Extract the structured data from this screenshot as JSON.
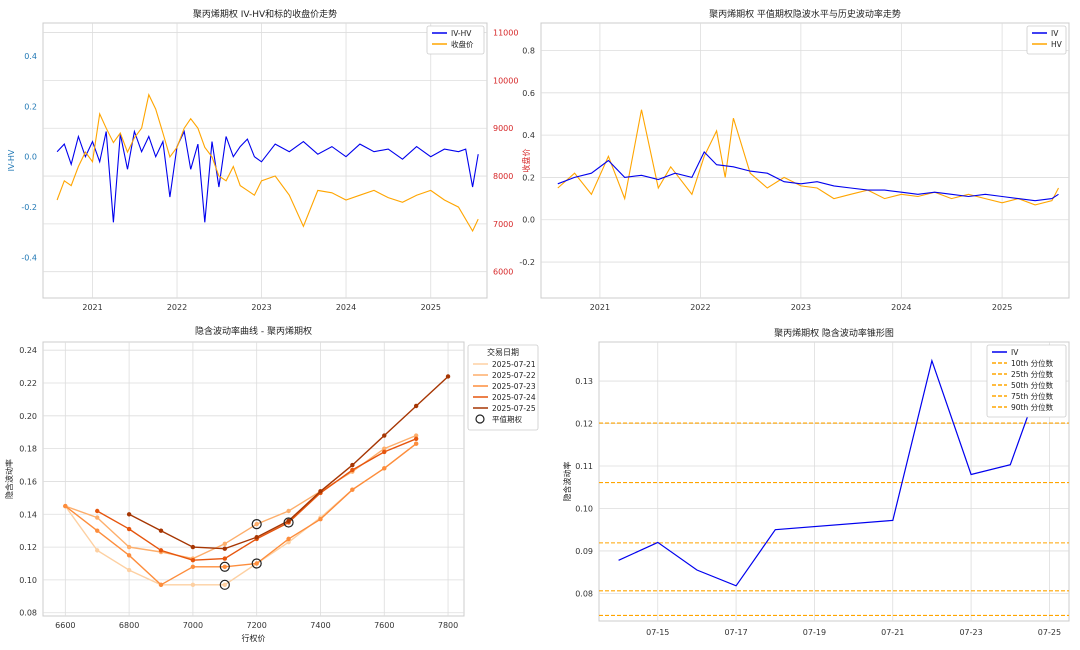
{
  "chart_data": [
    {
      "type": "line",
      "title": "聚丙烯期权 IV-HV和标的收盘价走势",
      "xlabel": "",
      "ylabel": "IV-HV",
      "y2label": "收盘价",
      "x_ticks": [
        "2021",
        "2022",
        "2023",
        "2024",
        "2025"
      ],
      "y_ticks": [
        "-0.4",
        "-0.2",
        "0.0",
        "0.2",
        "0.4"
      ],
      "y2_ticks": [
        "6000",
        "7000",
        "8000",
        "9000",
        "10000",
        "11000"
      ],
      "ylim": [
        -0.56,
        0.53
      ],
      "y2lim": [
        5450,
        11200
      ],
      "xlim": [
        "2020-06-01",
        "2025-09-01"
      ],
      "legend_position": "top-right",
      "grid": true,
      "series": [
        {
          "name": "IV-HV",
          "color": "#0000ee",
          "axis": "left",
          "x": [
            "2020-08-01",
            "2020-09-01",
            "2020-10-01",
            "2020-11-01",
            "2020-12-01",
            "2021-01-01",
            "2021-02-01",
            "2021-03-01",
            "2021-04-01",
            "2021-05-01",
            "2021-06-01",
            "2021-07-01",
            "2021-08-01",
            "2021-09-01",
            "2021-10-01",
            "2021-11-01",
            "2021-12-01",
            "2022-01-01",
            "2022-02-01",
            "2022-03-01",
            "2022-04-01",
            "2022-05-01",
            "2022-06-01",
            "2022-07-01",
            "2022-08-01",
            "2022-09-01",
            "2022-10-01",
            "2022-11-01",
            "2022-12-01",
            "2023-01-01",
            "2023-03-01",
            "2023-05-01",
            "2023-07-01",
            "2023-09-01",
            "2023-11-01",
            "2024-01-01",
            "2024-03-01",
            "2024-05-01",
            "2024-07-01",
            "2024-09-01",
            "2024-11-01",
            "2025-01-01",
            "2025-03-01",
            "2025-05-01",
            "2025-06-01",
            "2025-07-01",
            "2025-07-25"
          ],
          "y": [
            0.02,
            0.05,
            -0.03,
            0.08,
            0.0,
            0.06,
            -0.02,
            0.1,
            -0.26,
            0.09,
            -0.05,
            0.1,
            0.02,
            0.08,
            0.0,
            0.06,
            -0.16,
            0.04,
            0.1,
            -0.05,
            0.05,
            -0.26,
            0.06,
            -0.12,
            0.08,
            0.0,
            0.04,
            0.07,
            0.0,
            -0.02,
            0.05,
            0.02,
            0.06,
            0.01,
            0.04,
            0.0,
            0.05,
            0.02,
            0.03,
            -0.01,
            0.04,
            0.0,
            0.03,
            0.02,
            0.03,
            -0.12,
            0.01
          ]
        },
        {
          "name": "收盘价",
          "color": "#ffa500",
          "axis": "right",
          "x": [
            "2020-08-01",
            "2020-09-01",
            "2020-10-01",
            "2020-11-01",
            "2020-12-01",
            "2021-01-01",
            "2021-02-01",
            "2021-03-01",
            "2021-04-01",
            "2021-05-01",
            "2021-06-01",
            "2021-07-01",
            "2021-08-01",
            "2021-09-01",
            "2021-10-01",
            "2021-11-01",
            "2021-12-01",
            "2022-01-01",
            "2022-02-01",
            "2022-03-01",
            "2022-04-01",
            "2022-05-01",
            "2022-06-01",
            "2022-07-01",
            "2022-08-01",
            "2022-09-01",
            "2022-10-01",
            "2022-11-01",
            "2022-12-01",
            "2023-01-01",
            "2023-03-01",
            "2023-05-01",
            "2023-07-01",
            "2023-09-01",
            "2023-11-01",
            "2024-01-01",
            "2024-03-01",
            "2024-05-01",
            "2024-07-01",
            "2024-09-01",
            "2024-11-01",
            "2025-01-01",
            "2025-03-01",
            "2025-05-01",
            "2025-07-01",
            "2025-07-25"
          ],
          "y": [
            7500,
            7900,
            7800,
            8200,
            8500,
            8300,
            9300,
            9000,
            8700,
            8900,
            8500,
            8800,
            9000,
            9700,
            9400,
            8900,
            8400,
            8600,
            9000,
            9200,
            9000,
            8600,
            8400,
            8000,
            7900,
            8200,
            7800,
            7700,
            7600,
            7900,
            8000,
            7600,
            6950,
            7700,
            7650,
            7500,
            7600,
            7700,
            7550,
            7450,
            7600,
            7700,
            7500,
            7350,
            6850,
            7100
          ]
        }
      ]
    },
    {
      "type": "line",
      "title": "聚丙烯期权 平值期权隐波水平与历史波动率走势",
      "xlabel": "",
      "ylabel": "",
      "x_ticks": [
        "2021",
        "2022",
        "2023",
        "2024",
        "2025"
      ],
      "y_ticks": [
        "-0.2",
        "0.0",
        "0.2",
        "0.4",
        "0.6",
        "0.8"
      ],
      "ylim": [
        -0.37,
        0.93
      ],
      "xlim": [
        "2020-06-01",
        "2025-09-01"
      ],
      "legend_position": "top-right",
      "grid": true,
      "series": [
        {
          "name": "IV",
          "color": "#0000ee",
          "x": [
            "2020-08-01",
            "2020-10-01",
            "2020-12-01",
            "2021-02-01",
            "2021-04-01",
            "2021-06-01",
            "2021-08-01",
            "2021-10-01",
            "2021-12-01",
            "2022-01-15",
            "2022-03-01",
            "2022-05-01",
            "2022-07-01",
            "2022-09-01",
            "2022-11-01",
            "2023-01-01",
            "2023-03-01",
            "2023-05-01",
            "2023-07-01",
            "2023-09-01",
            "2023-11-01",
            "2024-01-01",
            "2024-03-01",
            "2024-05-01",
            "2024-07-01",
            "2024-09-01",
            "2024-11-01",
            "2025-01-01",
            "2025-03-01",
            "2025-05-01",
            "2025-07-01",
            "2025-07-25"
          ],
          "y": [
            0.17,
            0.2,
            0.22,
            0.28,
            0.2,
            0.21,
            0.19,
            0.22,
            0.2,
            0.32,
            0.26,
            0.25,
            0.23,
            0.22,
            0.18,
            0.17,
            0.18,
            0.16,
            0.15,
            0.14,
            0.14,
            0.13,
            0.12,
            0.13,
            0.12,
            0.11,
            0.12,
            0.11,
            0.1,
            0.09,
            0.1,
            0.12
          ]
        },
        {
          "name": "HV",
          "color": "#ffa500",
          "x": [
            "2020-08-01",
            "2020-10-01",
            "2020-12-01",
            "2021-02-01",
            "2021-04-01",
            "2021-06-01",
            "2021-08-01",
            "2021-09-15",
            "2021-10-15",
            "2021-12-01",
            "2022-01-15",
            "2022-03-01",
            "2022-04-01",
            "2022-05-01",
            "2022-07-01",
            "2022-09-01",
            "2022-11-01",
            "2023-01-01",
            "2023-03-01",
            "2023-05-01",
            "2023-07-01",
            "2023-09-01",
            "2023-11-01",
            "2024-01-01",
            "2024-03-01",
            "2024-05-01",
            "2024-07-01",
            "2024-09-01",
            "2024-11-01",
            "2025-01-01",
            "2025-03-01",
            "2025-05-01",
            "2025-07-01",
            "2025-07-25"
          ],
          "y": [
            0.15,
            0.22,
            0.12,
            0.3,
            0.1,
            0.52,
            0.15,
            0.25,
            0.2,
            0.12,
            0.3,
            0.42,
            0.2,
            0.48,
            0.22,
            0.15,
            0.2,
            0.16,
            0.15,
            0.1,
            0.12,
            0.14,
            0.1,
            0.12,
            0.11,
            0.13,
            0.1,
            0.12,
            0.1,
            0.08,
            0.1,
            0.07,
            0.09,
            0.15
          ]
        }
      ]
    },
    {
      "type": "line",
      "title": "隐含波动率曲线 - 聚丙烯期权",
      "xlabel": "行权价",
      "ylabel": "隐含波动率",
      "x_ticks": [
        "6600",
        "6800",
        "7000",
        "7200",
        "7400",
        "7600",
        "7800"
      ],
      "y_ticks": [
        "0.08",
        "0.10",
        "0.12",
        "0.14",
        "0.16",
        "0.18",
        "0.20",
        "0.22",
        "0.24"
      ],
      "xlim": [
        6530,
        7850
      ],
      "ylim": [
        0.078,
        0.245
      ],
      "legend_title": "交易日期",
      "legend_position": "top-right",
      "grid": true,
      "series": [
        {
          "name": "2025-07-21",
          "color": "#fdd0a2",
          "x": [
            6600,
            6700,
            6800,
            6900,
            7000,
            7100,
            7200,
            7300,
            7400,
            7500,
            7600,
            7700
          ],
          "y": [
            0.145,
            0.118,
            0.106,
            0.097,
            0.097,
            0.097,
            0.11,
            0.123,
            0.138,
            0.155,
            0.168,
            0.183
          ]
        },
        {
          "name": "2025-07-22",
          "color": "#fdae6b",
          "x": [
            6600,
            6700,
            6800,
            6900,
            7000,
            7100,
            7200,
            7300,
            7400,
            7500,
            7600,
            7700
          ],
          "y": [
            0.145,
            0.138,
            0.12,
            0.117,
            0.113,
            0.122,
            0.134,
            0.142,
            0.154,
            0.166,
            0.18,
            0.188
          ]
        },
        {
          "name": "2025-07-23",
          "color": "#fd8d3c",
          "x": [
            6600,
            6700,
            6800,
            6900,
            7000,
            7100,
            7200,
            7300,
            7400,
            7500,
            7600,
            7700
          ],
          "y": [
            0.145,
            0.13,
            0.115,
            0.097,
            0.108,
            0.108,
            0.11,
            0.125,
            0.137,
            0.155,
            0.168,
            0.183
          ]
        },
        {
          "name": "2025-07-24",
          "color": "#e6550d",
          "x": [
            6700,
            6800,
            6900,
            7000,
            7100,
            7200,
            7300,
            7400,
            7500,
            7600,
            7700
          ],
          "y": [
            0.142,
            0.131,
            0.118,
            0.112,
            0.113,
            0.125,
            0.135,
            0.153,
            0.167,
            0.178,
            0.186
          ]
        },
        {
          "name": "2025-07-25",
          "color": "#a63603",
          "x": [
            6800,
            6900,
            7000,
            7100,
            7200,
            7300,
            7400,
            7500,
            7600,
            7700,
            7800
          ],
          "y": [
            0.14,
            0.13,
            0.12,
            0.119,
            0.126,
            0.136,
            0.154,
            0.17,
            0.188,
            0.206,
            0.224
          ]
        }
      ],
      "atm_marker_label": "平值期权",
      "atm_points": [
        {
          "x": 7100,
          "y": 0.097
        },
        {
          "x": 7100,
          "y": 0.108
        },
        {
          "x": 7200,
          "y": 0.11
        },
        {
          "x": 7200,
          "y": 0.134
        },
        {
          "x": 7300,
          "y": 0.135
        }
      ]
    },
    {
      "type": "line",
      "title": "聚丙烯期权 隐含波动率锥形图",
      "xlabel": "",
      "ylabel": "隐含波动率",
      "x_ticks": [
        "07-15",
        "07-17",
        "07-19",
        "07-21",
        "07-23",
        "07-25"
      ],
      "y_ticks": [
        "0.08",
        "0.09",
        "0.10",
        "0.11",
        "0.12",
        "0.13"
      ],
      "xlim": [
        "2025-07-13.5",
        "2025-07-25.5"
      ],
      "ylim": [
        0.0735,
        0.1392
      ],
      "legend_position": "top-right",
      "grid": true,
      "series": [
        {
          "name": "IV",
          "color": "#0000ee",
          "x": [
            "2025-07-14",
            "2025-07-15",
            "2025-07-16",
            "2025-07-17",
            "2025-07-18",
            "2025-07-21",
            "2025-07-22",
            "2025-07-23",
            "2025-07-24",
            "2025-07-25"
          ],
          "y": [
            0.0878,
            0.092,
            0.0855,
            0.0818,
            0.095,
            0.0972,
            0.1348,
            0.108,
            0.1103,
            0.136
          ]
        }
      ],
      "percentiles": [
        {
          "name": "10th 分位数",
          "value": 0.0748,
          "color": "#ffa500"
        },
        {
          "name": "25th 分位数",
          "value": 0.0806,
          "color": "#ffa500"
        },
        {
          "name": "50th 分位数",
          "value": 0.0919,
          "color": "#ffa500"
        },
        {
          "name": "75th 分位数",
          "value": 0.1061,
          "color": "#ffa500"
        },
        {
          "name": "90th 分位数",
          "value": 0.1201,
          "color": "#ffa500"
        }
      ]
    }
  ]
}
